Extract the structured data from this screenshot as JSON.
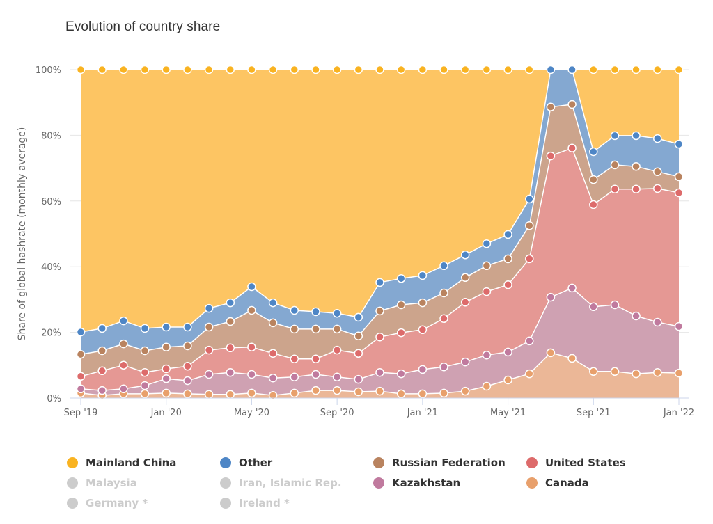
{
  "chart_data": {
    "type": "area",
    "stacking": "percent",
    "title": "Evolution of country share",
    "xlabel": "",
    "ylabel": "Share of global hashrate (monthly average)",
    "ylim": [
      0,
      100
    ],
    "y_ticks": [
      "0%",
      "20%",
      "40%",
      "60%",
      "80%",
      "100%"
    ],
    "y_tick_values": [
      0,
      20,
      40,
      60,
      80,
      100
    ],
    "x": [
      "Sep '19",
      "Oct '19",
      "Nov '19",
      "Dec '19",
      "Jan '20",
      "Feb '20",
      "Mar '20",
      "Apr '20",
      "May '20",
      "Jun '20",
      "Jul '20",
      "Aug '20",
      "Sep '20",
      "Oct '20",
      "Nov '20",
      "Dec '20",
      "Jan '21",
      "Feb '21",
      "Mar '21",
      "Apr '21",
      "May '21",
      "Jun '21",
      "Jul '21",
      "Aug '21",
      "Sep '21",
      "Oct '21",
      "Nov '21",
      "Dec '21",
      "Jan '22"
    ],
    "x_ticks": [
      {
        "index": 0,
        "label": "Sep '19"
      },
      {
        "index": 4,
        "label": "Jan '20"
      },
      {
        "index": 8,
        "label": "May '20"
      },
      {
        "index": 12,
        "label": "Sep '20"
      },
      {
        "index": 16,
        "label": "Jan '21"
      },
      {
        "index": 20,
        "label": "May '21"
      },
      {
        "index": 24,
        "label": "Sep '21"
      },
      {
        "index": 28,
        "label": "Jan '22"
      }
    ],
    "grid": true,
    "legend_position": "bottom",
    "series": [
      {
        "name": "Canada",
        "color": "#E8A06C",
        "fill": "#EBB797",
        "values": [
          1.5,
          0.8,
          1.3,
          1.3,
          1.5,
          1.3,
          1.1,
          1.1,
          1.5,
          0.8,
          1.5,
          2.3,
          2.3,
          1.9,
          2.1,
          1.3,
          1.3,
          1.5,
          2.1,
          3.6,
          5.5,
          7.4,
          13.8,
          12.1,
          8.1,
          8.1,
          7.4,
          7.8,
          7.6
        ]
      },
      {
        "name": "Kazakhstan",
        "color": "#C07A9E",
        "fill": "#CFA1B2",
        "values": [
          1.3,
          1.5,
          1.5,
          2.5,
          4.4,
          4.0,
          6.1,
          6.7,
          5.7,
          5.3,
          4.9,
          4.9,
          4.1,
          3.8,
          5.7,
          6.1,
          7.4,
          8.0,
          8.9,
          9.5,
          8.5,
          10.0,
          16.9,
          21.4,
          19.7,
          20.3,
          17.6,
          15.3,
          14.2
        ]
      },
      {
        "name": "United States",
        "color": "#DD6B6B",
        "fill": "#E59894",
        "values": [
          3.8,
          6.0,
          7.2,
          4.0,
          3.0,
          4.4,
          7.4,
          7.5,
          8.3,
          7.5,
          5.5,
          4.7,
          8.2,
          7.9,
          10.8,
          12.5,
          12.1,
          14.7,
          18.2,
          19.3,
          20.5,
          25.0,
          43.0,
          42.6,
          31.1,
          35.2,
          38.6,
          40.7,
          40.7
        ]
      },
      {
        "name": "Russian Federation",
        "color": "#B9835F",
        "fill": "#CCA48C",
        "values": [
          6.7,
          6.1,
          6.5,
          6.6,
          6.6,
          6.2,
          7.0,
          8.0,
          11.2,
          9.3,
          9.1,
          9.1,
          6.4,
          5.3,
          7.9,
          8.5,
          8.2,
          7.8,
          7.5,
          7.9,
          7.9,
          10.1,
          14.9,
          13.3,
          7.6,
          7.4,
          6.9,
          5.1,
          4.9
        ]
      },
      {
        "name": "Other",
        "color": "#4E86C6",
        "fill": "#84A8D1",
        "values": [
          6.8,
          6.8,
          7.0,
          6.8,
          6.1,
          5.7,
          5.7,
          5.7,
          7.2,
          6.1,
          5.7,
          5.3,
          4.8,
          5.7,
          8.7,
          8.0,
          8.3,
          8.3,
          6.9,
          6.7,
          7.4,
          8.1,
          11.4,
          10.6,
          8.5,
          8.9,
          9.4,
          10.1,
          9.9
        ]
      },
      {
        "name": "Mainland China",
        "color": "#F9B321",
        "fill": "#FDC563",
        "values": [
          79.9,
          78.8,
          76.5,
          78.8,
          78.4,
          78.4,
          72.7,
          71.0,
          66.1,
          71.0,
          73.3,
          73.7,
          74.2,
          75.4,
          64.8,
          63.6,
          62.7,
          59.7,
          56.4,
          53.0,
          50.2,
          39.4,
          0,
          0,
          25.0,
          20.1,
          20.1,
          21.0,
          22.7
        ]
      }
    ],
    "hidden_series": [
      "Malaysia",
      "Iran, Islamic Rep.",
      "Germany *",
      "Ireland *"
    ]
  },
  "legend": {
    "items": [
      {
        "label": "Mainland China",
        "color": "#F9B321",
        "visible": true
      },
      {
        "label": "Other",
        "color": "#4E86C6",
        "visible": true
      },
      {
        "label": "Russian Federation",
        "color": "#B9835F",
        "visible": true
      },
      {
        "label": "United States",
        "color": "#DD6B6B",
        "visible": true
      },
      {
        "label": "Malaysia",
        "color": "#CCCCCC",
        "visible": false
      },
      {
        "label": "Iran, Islamic Rep.",
        "color": "#CCCCCC",
        "visible": false
      },
      {
        "label": "Kazakhstan",
        "color": "#C07A9E",
        "visible": true
      },
      {
        "label": "Canada",
        "color": "#E8A06C",
        "visible": true
      },
      {
        "label": "Germany *",
        "color": "#CCCCCC",
        "visible": false
      },
      {
        "label": "Ireland *",
        "color": "#CCCCCC",
        "visible": false
      }
    ]
  }
}
